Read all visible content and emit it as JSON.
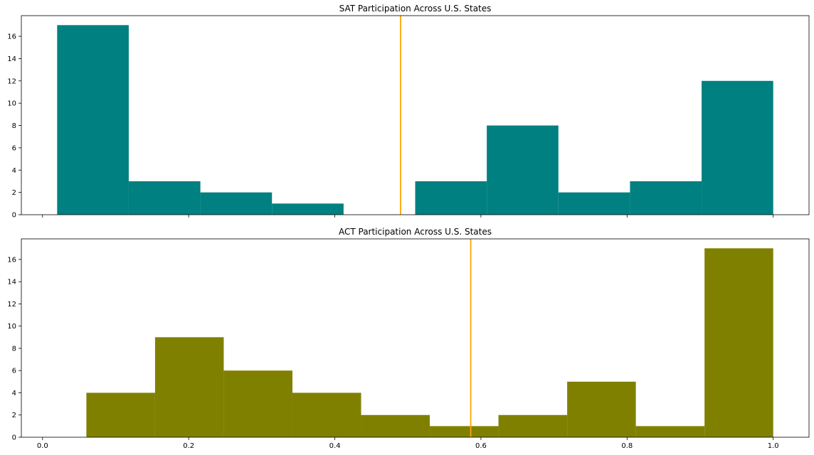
{
  "chart_data": [
    {
      "type": "bar",
      "title": "SAT Participation Across U.S. States",
      "xlabel": "",
      "ylabel": "",
      "bin_edges": [
        0.02,
        0.118,
        0.216,
        0.314,
        0.412,
        0.51,
        0.608,
        0.706,
        0.804,
        0.902,
        1.0
      ],
      "values": [
        17,
        3,
        2,
        1,
        0,
        3,
        8,
        2,
        3,
        12
      ],
      "mean_line": 0.49,
      "xlim": [
        -0.029,
        1.049
      ],
      "ylim": [
        0,
        17.85
      ],
      "yticks": [
        0,
        2,
        4,
        6,
        8,
        10,
        12,
        14,
        16
      ],
      "xticks": [
        0.0,
        0.2,
        0.4,
        0.6,
        0.8,
        1.0
      ],
      "show_xtick_labels": false,
      "bar_color": "#008080",
      "line_color": "#FFA500",
      "grid": false,
      "legend": "none"
    },
    {
      "type": "bar",
      "title": "ACT Participation Across U.S. States",
      "xlabel": "",
      "ylabel": "",
      "bin_edges": [
        0.06,
        0.154,
        0.248,
        0.342,
        0.436,
        0.53,
        0.624,
        0.718,
        0.812,
        0.906,
        1.0
      ],
      "values": [
        4,
        9,
        6,
        4,
        2,
        1,
        2,
        5,
        1,
        17
      ],
      "mean_line": 0.586,
      "xlim": [
        -0.029,
        1.049
      ],
      "ylim": [
        0,
        17.85
      ],
      "yticks": [
        0,
        2,
        4,
        6,
        8,
        10,
        12,
        14,
        16
      ],
      "xticks": [
        0.0,
        0.2,
        0.4,
        0.6,
        0.8,
        1.0
      ],
      "xtick_labels": [
        "0.0",
        "0.2",
        "0.4",
        "0.6",
        "0.8",
        "1.0"
      ],
      "show_xtick_labels": true,
      "bar_color": "#808000",
      "line_color": "#FFA500",
      "grid": false,
      "legend": "none"
    }
  ]
}
